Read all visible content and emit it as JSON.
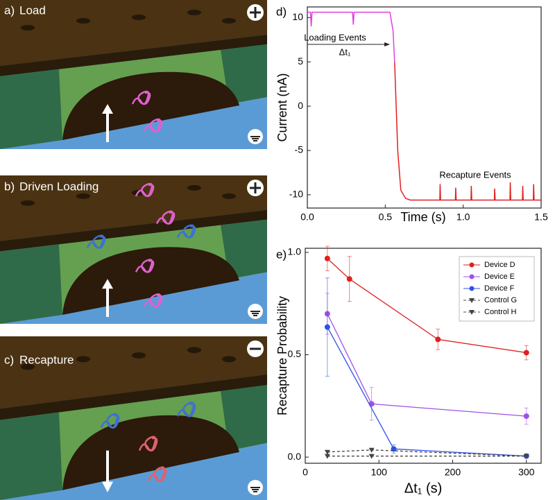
{
  "panels": [
    {
      "letter": "a)",
      "label": "Load"
    },
    {
      "letter": "b)",
      "label": "Driven Loading"
    },
    {
      "letter": "c)",
      "label": "Recapture"
    }
  ],
  "chart_data": [
    {
      "type": "line",
      "panel_label": "d)",
      "x_label": "Time (s)",
      "y_label": "Current (nA)",
      "xlim": [
        0,
        1.5
      ],
      "xticks": [
        {
          "value": 0,
          "label": "0.0"
        },
        {
          "value": 0.5,
          "label": "0.5"
        },
        {
          "value": 1,
          "label": "1.0"
        },
        {
          "value": 1.5,
          "label": "1.5"
        }
      ],
      "ylim": [
        -11.5,
        11.2
      ],
      "yticks": [
        -10,
        -5,
        0,
        5,
        10
      ],
      "annotations": [
        "Loading Events",
        "Δt₁",
        "Recapture Events"
      ],
      "series": [
        {
          "color": "#e040e0",
          "x": [
            0,
            0.02,
            0.025,
            0.03,
            0.29,
            0.295,
            0.3,
            0.53,
            0.55,
            0.56
          ],
          "values": [
            10.6,
            10.6,
            9,
            10.6,
            10.6,
            9.2,
            10.6,
            10.6,
            8.5,
            5
          ]
        },
        {
          "color": "#e02020",
          "x": [
            0.56,
            0.58,
            0.6,
            0.63,
            0.66,
            0.85,
            0.852,
            0.855,
            0.95,
            0.952,
            0.955,
            1.05,
            1.052,
            1.055,
            1.2,
            1.202,
            1.205,
            1.3,
            1.302,
            1.305,
            1.38,
            1.382,
            1.385,
            1.45,
            1.452,
            1.455,
            1.5
          ],
          "values": [
            5,
            -5,
            -9.5,
            -10.4,
            -10.6,
            -10.6,
            -8.8,
            -10.6,
            -10.6,
            -9.2,
            -10.6,
            -10.6,
            -9,
            -10.6,
            -10.6,
            -9.3,
            -10.6,
            -10.6,
            -8.6,
            -10.6,
            -10.6,
            -9,
            -10.6,
            -10.6,
            -8.8,
            -10.6,
            -10.6
          ]
        }
      ]
    },
    {
      "type": "line",
      "panel_label": "e)",
      "x_label": "Δt₁ (s)",
      "y_label": "Recapture Probability",
      "xlim": [
        0,
        320
      ],
      "xticks": [
        0,
        100,
        200,
        300
      ],
      "ylim": [
        -0.03,
        1.02
      ],
      "yticks": [
        {
          "value": 0,
          "label": "0.0"
        },
        {
          "value": 0.5,
          "label": "0.5"
        },
        {
          "value": 1,
          "label": "1.0"
        }
      ],
      "legend": "upper right",
      "series": [
        {
          "name": "Device D",
          "color": "#e02020",
          "marker": "circle",
          "x": [
            30,
            60,
            180,
            300
          ],
          "values": [
            0.97,
            0.87,
            0.575,
            0.51
          ],
          "errors": [
            0.06,
            0.11,
            0.05,
            0.035
          ]
        },
        {
          "name": "Device E",
          "color": "#a050e8",
          "marker": "circle",
          "x": [
            30,
            90,
            300
          ],
          "values": [
            0.7,
            0.26,
            0.2
          ],
          "errors": [
            0.1,
            0.08,
            0.04
          ]
        },
        {
          "name": "Device F",
          "color": "#3050e8",
          "marker": "circle",
          "x": [
            30,
            120,
            300
          ],
          "values": [
            0.635,
            0.04,
            0.005
          ],
          "errors": [
            0.24,
            0.02,
            0.005
          ]
        },
        {
          "name": "Control G",
          "color": "#444444",
          "marker": "triangle",
          "dashed": true,
          "x": [
            30,
            90,
            300
          ],
          "values": [
            0.025,
            0.035,
            0.005
          ]
        },
        {
          "name": "Control H",
          "color": "#444444",
          "marker": "triangle",
          "dashed": true,
          "x": [
            30,
            90,
            300
          ],
          "values": [
            0.005,
            0.005,
            0.005
          ]
        }
      ]
    }
  ]
}
